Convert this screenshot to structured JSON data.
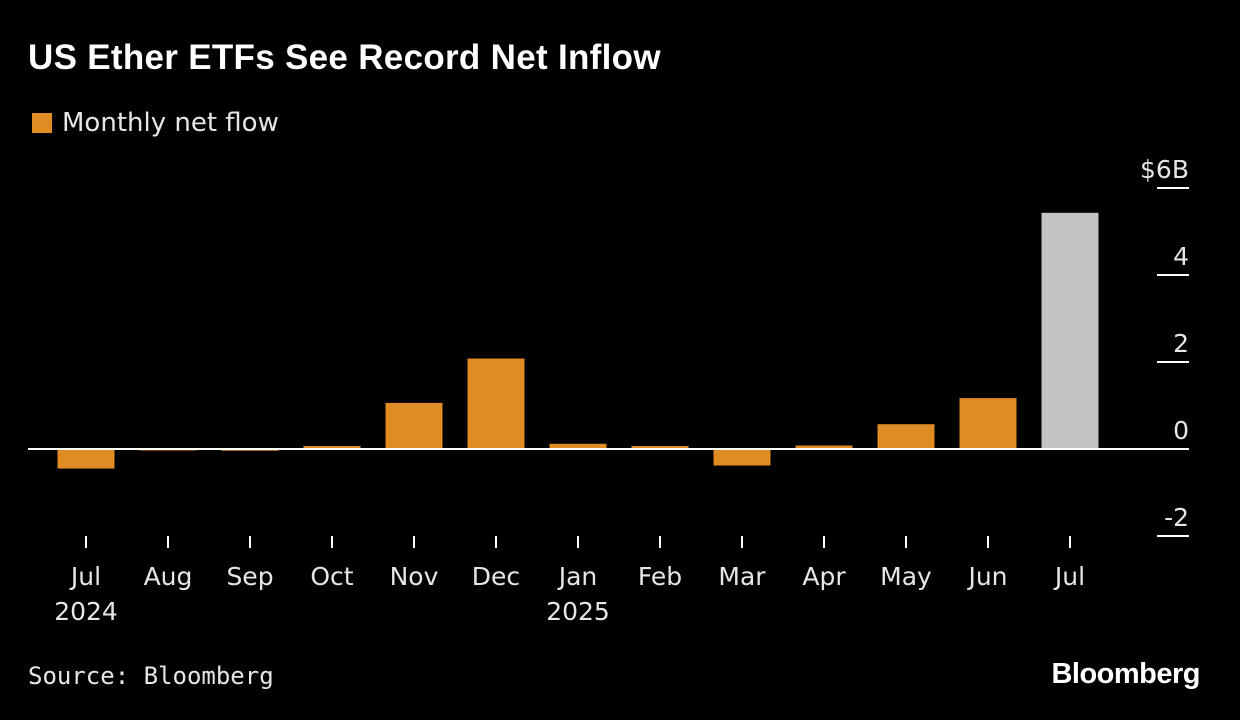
{
  "chart_data": {
    "type": "bar",
    "title": "US Ether ETFs See Record Net Inflow",
    "legend": [
      {
        "label": "Monthly net flow",
        "color": "#e08c24"
      }
    ],
    "legend_position": "top-left",
    "categories": [
      "Jul",
      "Aug",
      "Sep",
      "Oct",
      "Nov",
      "Dec",
      "Jan",
      "Feb",
      "Mar",
      "Apr",
      "May",
      "Jun",
      "Jul"
    ],
    "year_labels": [
      "2024",
      "",
      "",
      "",
      "",
      "",
      "2025",
      "",
      "",
      "",
      "",
      "",
      ""
    ],
    "series": [
      {
        "values": [
          -0.45,
          -0.02,
          -0.04,
          0.07,
          1.06,
          2.08,
          0.12,
          0.07,
          -0.38,
          0.08,
          0.57,
          1.17,
          5.43
        ],
        "bar_colors": [
          "#e08c24",
          "#e08c24",
          "#e08c24",
          "#e08c24",
          "#e08c24",
          "#e08c24",
          "#e08c24",
          "#e08c24",
          "#e08c24",
          "#e08c24",
          "#e08c24",
          "#e08c24",
          "#c3c3c3"
        ]
      }
    ],
    "y_ticks": [
      {
        "value": 6,
        "label": "$6B"
      },
      {
        "value": 4,
        "label": "4"
      },
      {
        "value": 2,
        "label": "2"
      },
      {
        "value": 0,
        "label": "0"
      },
      {
        "value": -2,
        "label": "-2"
      }
    ],
    "ylim": [
      -2,
      6
    ],
    "y_axis_side": "right",
    "grid": false,
    "xlabel": "",
    "ylabel": ""
  },
  "footer": {
    "source": "Source: Bloomberg",
    "brand": "Bloomberg"
  }
}
